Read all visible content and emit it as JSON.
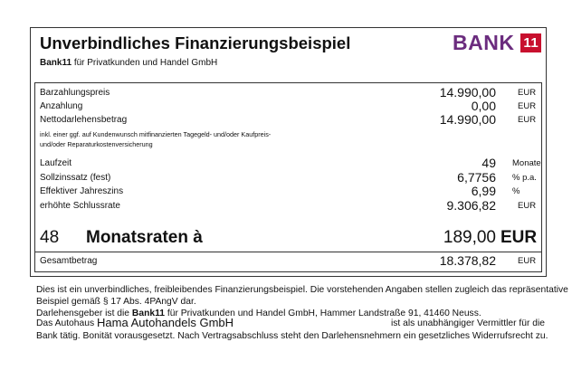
{
  "header": {
    "title": "Unverbindliches Finanzierungsbeispiel",
    "logo": {
      "name": "BANK",
      "number": "11"
    },
    "subtitle": {
      "bold": "Bank11",
      "text": "für Privatkunden und Handel GmbH"
    }
  },
  "rows": [
    {
      "label": "Barzahlungspreis",
      "value": "14.990,00",
      "unit": "EUR"
    },
    {
      "label": "Anzahlung",
      "value": "0,00",
      "unit": "EUR"
    },
    {
      "label": "Nettodarlehensbetrag",
      "value": "14.990,00",
      "unit": "EUR"
    }
  ],
  "note": [
    "inkl. einer ggf. auf Kundenwunsch mitfinanzierten Tagegeld- und/oder Kaufpreis-",
    "und/oder Reparaturkostenversicherung"
  ],
  "terms": [
    {
      "label": "Laufzeit",
      "value": "49",
      "unit": "Monate"
    },
    {
      "label": "Sollzinssatz (fest)",
      "value": "6,7756",
      "unit": "% p.a."
    },
    {
      "label": "Effektiver Jahreszins",
      "value": "6,99",
      "unit": "%"
    },
    {
      "label": "erhöhte Schlussrate",
      "value": "9.306,82",
      "unit": "EUR"
    }
  ],
  "rate": {
    "count": "48",
    "label": "Monatsraten à",
    "value": "189,00",
    "unit": "EUR"
  },
  "total": {
    "label": "Gesamtbetrag",
    "value": "18.378,82",
    "unit": "EUR"
  },
  "footer": {
    "line1": "Dies ist ein unverbindliches, freibleibendes Finanzierungsbeispiel. Die vorstehenden Angaben stellen zugleich das repräsentative",
    "line2": "Beispiel gemäß § 17 Abs. 4PAngV dar.",
    "line3": {
      "before": "Darlehensgeber ist die",
      "bold": "Bank11",
      "after": "für Privatkunden und Handel GmbH, Hammer Landstraße 91, 41460 Neuss."
    },
    "line4": {
      "before": "Das Autohaus",
      "dealer": "Hama Autohandels GmbH",
      "after": "ist als unabhängiger Vermittler für die"
    },
    "line5": "Bank tätig. Bonität vorausgesetzt. Nach Vertragsabschluss steht den Darlehensnehmern ein gesetzliches Widerrufsrecht zu."
  }
}
